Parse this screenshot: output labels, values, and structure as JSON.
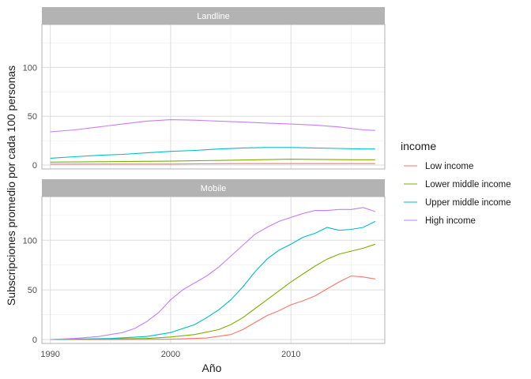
{
  "chart_data": {
    "type": "line",
    "xlabel": "Año",
    "ylabel": "Subscripciones promedio por cada 100 personas",
    "xlim": [
      1989.3,
      2017.8
    ],
    "ylim": [
      -4,
      144
    ],
    "x_ticks": [
      1990,
      2000,
      2010
    ],
    "y_ticks": [
      0,
      50,
      100
    ],
    "grid": true,
    "legend": {
      "title": "income",
      "position": "right",
      "entries": [
        "Low income",
        "Lower middle income",
        "Upper middle income",
        "High income"
      ]
    },
    "facets": [
      {
        "label": "Landline",
        "series": [
          {
            "name": "Low income",
            "color": "#F8766D",
            "x": [
              1990,
              1995,
              2000,
              2005,
              2006,
              2010,
              2015,
              2017
            ],
            "y": [
              1,
              1,
              1,
              1.5,
              1.5,
              1.5,
              1.5,
              1.5
            ]
          },
          {
            "name": "Lower middle income",
            "color": "#7CAE00",
            "x": [
              1990,
              1995,
              2000,
              2005,
              2010,
              2015,
              2017
            ],
            "y": [
              3,
              3.5,
              4,
              5,
              6,
              5.5,
              5.5
            ]
          },
          {
            "name": "Upper middle income",
            "color": "#00BFC4",
            "x": [
              1990,
              1992,
              1994,
              1996,
              1998,
              2000,
              2002,
              2004,
              2006,
              2008,
              2010,
              2012,
              2014,
              2016,
              2017
            ],
            "y": [
              7,
              8.5,
              10,
              11,
              12.5,
              14,
              15,
              16.5,
              17.5,
              18,
              18,
              17.5,
              17,
              16.5,
              16.5
            ]
          },
          {
            "name": "High income",
            "color": "#C77CFF",
            "x": [
              1990,
              1992,
              1994,
              1996,
              1998,
              2000,
              2002,
              2004,
              2006,
              2008,
              2010,
              2012,
              2014,
              2016,
              2017
            ],
            "y": [
              34,
              36,
              39,
              42,
              45,
              46.5,
              46,
              45,
              44,
              43,
              42,
              41,
              39,
              36,
              35.5
            ]
          }
        ]
      },
      {
        "label": "Mobile",
        "series": [
          {
            "name": "Low income",
            "color": "#F8766D",
            "x": [
              1990,
              1995,
              2000,
              2003,
              2005,
              2006,
              2007,
              2008,
              2009,
              2010,
              2011,
              2012,
              2013,
              2014,
              2015,
              2016,
              2017
            ],
            "y": [
              0,
              0,
              0.3,
              1.5,
              5,
              10,
              17,
              24,
              29,
              35,
              39,
              44,
              51,
              58,
              64,
              63,
              61
            ]
          },
          {
            "name": "Lower middle income",
            "color": "#7CAE00",
            "x": [
              1990,
              1995,
              1998,
              2000,
              2002,
              2004,
              2005,
              2006,
              2007,
              2008,
              2009,
              2010,
              2011,
              2012,
              2013,
              2014,
              2015,
              2016,
              2017
            ],
            "y": [
              0,
              0.5,
              1,
              2.5,
              5,
              10,
              15,
              22,
              31,
              40,
              49,
              58,
              66,
              74,
              81,
              86,
              89,
              92,
              96
            ]
          },
          {
            "name": "Upper middle income",
            "color": "#00BFC4",
            "x": [
              1990,
              1995,
              1998,
              2000,
              2002,
              2003,
              2004,
              2005,
              2006,
              2007,
              2008,
              2009,
              2010,
              2011,
              2012,
              2013,
              2014,
              2015,
              2016,
              2017
            ],
            "y": [
              0,
              1,
              3,
              7,
              15,
              22,
              30,
              40,
              53,
              68,
              81,
              90,
              96,
              103,
              107,
              113,
              110,
              111,
              113,
              119
            ]
          },
          {
            "name": "High income",
            "color": "#C77CFF",
            "x": [
              1990,
              1992,
              1994,
              1996,
              1997,
              1998,
              1999,
              2000,
              2001,
              2002,
              2003,
              2004,
              2005,
              2006,
              2007,
              2008,
              2009,
              2010,
              2011,
              2012,
              2013,
              2014,
              2015,
              2016,
              2017
            ],
            "y": [
              0,
              1,
              3,
              7,
              11,
              18,
              27,
              40,
              50,
              57,
              64,
              73,
              84,
              95,
              106,
              113,
              119,
              123,
              127,
              130,
              130,
              131,
              131,
              133,
              129
            ]
          }
        ]
      }
    ]
  }
}
